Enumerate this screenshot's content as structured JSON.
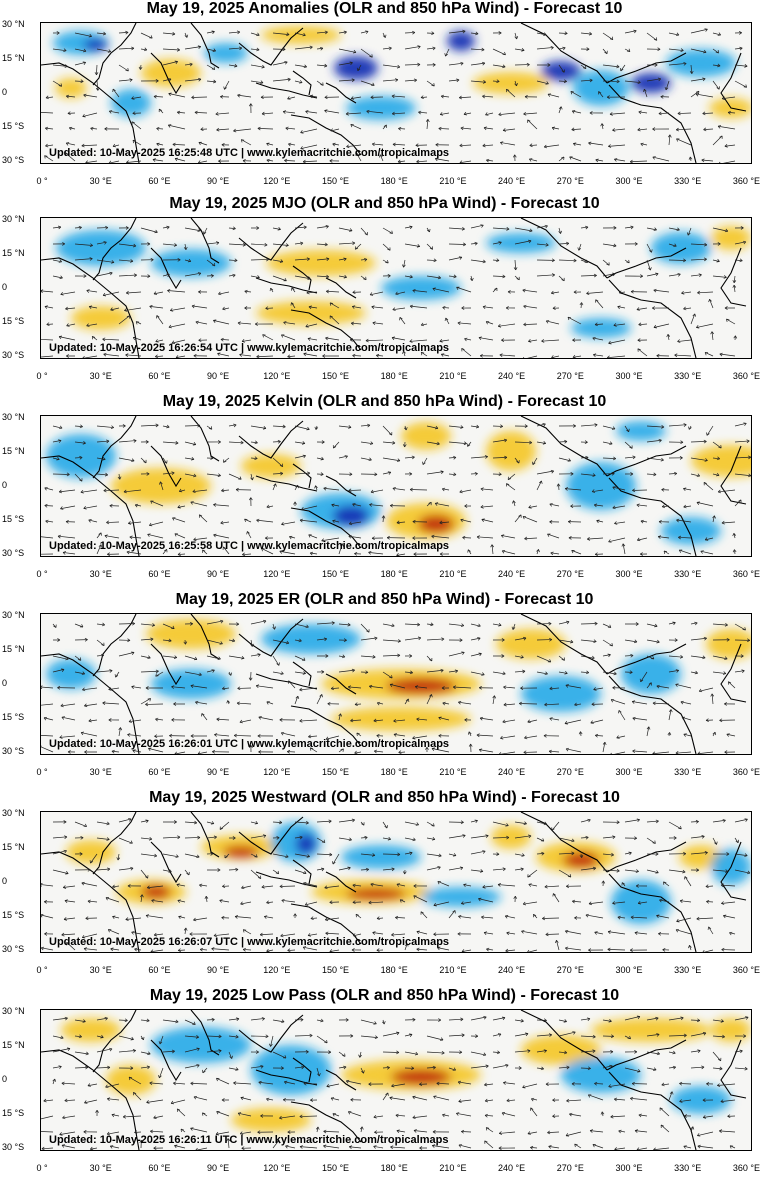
{
  "panels": [
    {
      "title": "May 19, 2025 Anomalies (OLR and 850 hPa Wind) - Forecast 10",
      "updated": "Updated: 10-May-2025 16:25:48 UTC | www.kylemacritchie.com/tropicalmaps"
    },
    {
      "title": "May 19, 2025 MJO (OLR and 850 hPa Wind) - Forecast 10",
      "updated": "Updated: 10-May-2025 16:26:54 UTC | www.kylemacritchie.com/tropicalmaps"
    },
    {
      "title": "May 19, 2025 Kelvin (OLR and 850 hPa Wind) - Forecast 10",
      "updated": "Updated: 10-May-2025 16:25:58 UTC | www.kylemacritchie.com/tropicalmaps"
    },
    {
      "title": "May 19, 2025 ER (OLR and 850 hPa Wind) - Forecast 10",
      "updated": "Updated: 10-May-2025 16:26:01 UTC | www.kylemacritchie.com/tropicalmaps"
    },
    {
      "title": "May 19, 2025 Westward (OLR and 850 hPa Wind) - Forecast 10",
      "updated": "Updated: 10-May-2025 16:26:07 UTC | www.kylemacritchie.com/tropicalmaps"
    },
    {
      "title": "May 19, 2025 Low Pass (OLR and 850 hPa Wind) - Forecast 10",
      "updated": "Updated: 10-May-2025 16:26:11 UTC | www.kylemacritchie.com/tropicalmaps"
    }
  ],
  "lat_labels": [
    "30 °N",
    "15 °N",
    "0",
    "15 °S",
    "30 °S"
  ],
  "lon_labels": [
    "0 °",
    "30 °E",
    "60 °E",
    "90 °E",
    "120 °E",
    "150 °E",
    "180 °E",
    "210 °E",
    "240 °E",
    "270 °E",
    "300 °E",
    "330 °E",
    "360 °E"
  ],
  "colors": {
    "negative_anomaly": "#1ba5e8",
    "strong_negative": "#1632b4",
    "positive_anomaly": "#f5c316",
    "strong_positive": "#c0280f",
    "coast": "#000000"
  }
}
